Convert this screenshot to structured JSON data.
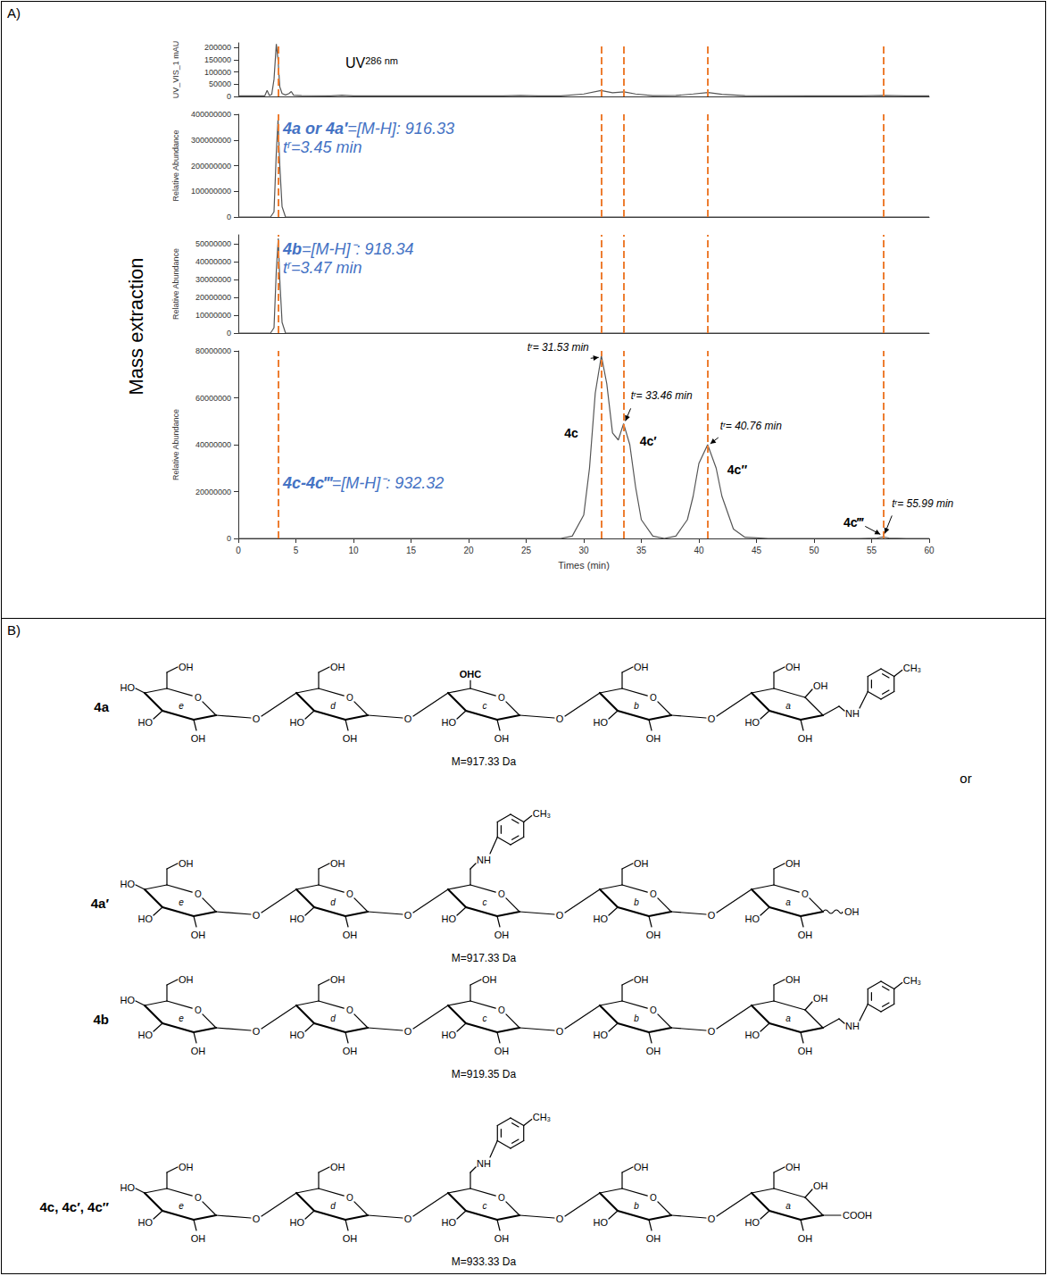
{
  "figure": {
    "panel_labels": [
      "A)",
      "B)"
    ],
    "group_label": "Mass extraction",
    "dashed_lines": {
      "x": [
        3.45,
        31.53,
        33.46,
        40.76,
        55.99
      ],
      "color": "#ed7d31"
    }
  },
  "chart_data": [
    {
      "type": "line",
      "y_label": "UV_VIS_1 mAU",
      "annotation": {
        "text": "UV",
        "subscript": "286 nm"
      },
      "x": [
        0,
        2.3,
        2.5,
        2.7,
        2.9,
        3.1,
        3.3,
        3.45,
        3.6,
        3.8,
        4.1,
        4.4,
        4.6,
        4.8,
        5.5,
        8,
        9,
        10,
        15,
        20,
        23,
        24.5,
        26,
        28,
        30,
        31.5,
        32.5,
        33.5,
        34.5,
        36,
        38,
        39.5,
        40.8,
        42,
        44,
        50,
        54,
        56,
        58,
        60
      ],
      "series": [
        {
          "color": "#555555",
          "values": [
            2000,
            2500,
            25000,
            4000,
            8000,
            70000,
            215000,
            150000,
            40000,
            12000,
            6000,
            12000,
            20000,
            5000,
            3000,
            2500,
            5000,
            2500,
            2000,
            2000,
            2500,
            4000,
            2500,
            2500,
            10000,
            24000,
            15000,
            19000,
            10000,
            3000,
            4000,
            10000,
            16000,
            9000,
            3000,
            2000,
            2500,
            4000,
            2500,
            2000
          ]
        }
      ],
      "xlim": [
        0,
        60
      ],
      "ylim": [
        0,
        220000
      ],
      "yticks": [
        0,
        50000,
        100000,
        150000,
        200000
      ],
      "tick_labels": "y",
      "grid": false
    },
    {
      "type": "line",
      "y_label": "Relative Abundance",
      "annotation": {
        "compounds": "4a or 4a′",
        "ion": "=[M-H]: 916.33",
        "rt": {
          "main": "t",
          "sub": "r",
          "rest": "=3.45 min"
        }
      },
      "x": [
        0,
        2.8,
        3.1,
        3.3,
        3.45,
        3.6,
        3.8,
        4.1,
        5,
        60
      ],
      "series": [
        {
          "color": "#555555",
          "values": [
            0,
            0,
            20000000,
            250000000,
            380000000,
            200000000,
            40000000,
            0,
            0,
            0
          ]
        }
      ],
      "xlim": [
        0,
        60
      ],
      "ylim": [
        0,
        400000000
      ],
      "yticks": [
        0,
        100000000,
        200000000,
        300000000,
        400000000
      ],
      "tick_labels": "y",
      "grid": false
    },
    {
      "type": "line",
      "y_label": "Relative Abundance",
      "annotation": {
        "compounds": "4b",
        "ion": "=[M-H]⁻: 918.34",
        "rt": {
          "main": "t",
          "sub": "r",
          "rest": "=3.47 min"
        }
      },
      "x": [
        0,
        2.8,
        3.1,
        3.3,
        3.47,
        3.6,
        3.8,
        4.1,
        5,
        60
      ],
      "series": [
        {
          "color": "#555555",
          "values": [
            0,
            0,
            3000000,
            35000000,
            53000000,
            30000000,
            6000000,
            0,
            0,
            0
          ]
        }
      ],
      "xlim": [
        0,
        60
      ],
      "ylim": [
        0,
        55000000
      ],
      "yticks": [
        0,
        10000000,
        20000000,
        30000000,
        40000000,
        50000000
      ],
      "tick_labels": "y",
      "grid": false
    },
    {
      "type": "line",
      "y_label": "Relative Abundance",
      "x_label": "Times (min)",
      "annotation": {
        "compounds": "4c-4c‴",
        "ion": "=[M-H]⁻: 932.32"
      },
      "peak_labels": [
        {
          "compound": "4c",
          "rt": {
            "main": "t",
            "sub": "r",
            "rest": "= 31.53 min"
          },
          "x": 31.53
        },
        {
          "compound": "4c′",
          "rt": {
            "main": "t",
            "sub": "r",
            "rest": "= 33.46 min"
          },
          "x": 33.46
        },
        {
          "compound": "4c″",
          "rt": {
            "main": "t",
            "sub": "r",
            "rest": "= 40.76 min"
          },
          "x": 40.76
        },
        {
          "compound": "4c‴",
          "rt": {
            "main": "t",
            "sub": "r",
            "rest": "= 55.99 min"
          },
          "x": 55.99
        }
      ],
      "x": [
        0,
        25,
        28,
        29,
        30,
        30.5,
        31,
        31.53,
        32,
        32.5,
        33,
        33.46,
        34,
        34.5,
        35,
        36,
        37,
        38,
        39,
        39.5,
        40,
        40.76,
        41.5,
        42,
        43,
        44,
        46,
        50,
        54,
        55.5,
        55.99,
        56.5,
        58,
        60
      ],
      "series": [
        {
          "color": "#555555",
          "values": [
            0,
            0,
            0,
            1000000,
            10000000,
            30000000,
            62000000,
            78000000,
            66000000,
            45000000,
            42000000,
            49000000,
            40000000,
            22000000,
            8000000,
            1000000,
            0,
            1000000,
            8000000,
            18000000,
            32000000,
            40000000,
            30000000,
            18000000,
            4000000,
            500000,
            0,
            0,
            0,
            200000,
            600000,
            200000,
            0,
            0
          ]
        }
      ],
      "xlim": [
        0,
        60
      ],
      "xticks": [
        0,
        5,
        10,
        15,
        20,
        25,
        30,
        35,
        40,
        45,
        50,
        55,
        60
      ],
      "ylim": [
        0,
        80000000
      ],
      "yticks": [
        0,
        20000000,
        40000000,
        60000000,
        80000000
      ],
      "grid": false
    }
  ],
  "structures": {
    "separator": "or",
    "items": [
      {
        "label": "4a",
        "mass": "M=917.33 Da",
        "linkage": "O",
        "rings": [
          {
            "letter": "e",
            "ring_o": "O",
            "c6_oh": "OH",
            "c4_oh": "HO",
            "c3_oh": "HO",
            "c2_oh": "OH"
          },
          {
            "letter": "d",
            "ring_o": "O",
            "c6_oh": "OH",
            "c3_oh": "HO",
            "c2_oh": "OH"
          },
          {
            "letter": "c",
            "ring_o": "O",
            "c6_group": "OHC",
            "c3_oh": "HO",
            "c2_oh": "OH"
          },
          {
            "letter": "b",
            "ring_o": "O",
            "c6_oh": "OH",
            "c3_oh": "HO",
            "c2_oh": "OH"
          },
          {
            "letter": "a",
            "c6_oh": "OH",
            "o5_oh": "OH",
            "c3_oh": "HO",
            "c2_oh": "OH",
            "c1_amine": "NH",
            "aryl_methyl": "CH₃"
          }
        ]
      },
      {
        "label": "4a′",
        "mass": "M=917.33 Da",
        "linkage": "O",
        "rings": [
          {
            "letter": "e",
            "ring_o": "O",
            "c6_oh": "OH",
            "c4_oh": "HO",
            "c3_oh": "HO",
            "c2_oh": "OH"
          },
          {
            "letter": "d",
            "ring_o": "O",
            "c6_oh": "OH",
            "c3_oh": "HO",
            "c2_oh": "OH"
          },
          {
            "letter": "c",
            "ring_o": "O",
            "c6_amine": "NH",
            "aryl_methyl": "CH₃",
            "c3_oh": "HO",
            "c2_oh": "OH"
          },
          {
            "letter": "b",
            "ring_o": "O",
            "c6_oh": "OH",
            "c3_oh": "HO",
            "c2_oh": "OH"
          },
          {
            "letter": "a",
            "ring_o": "O",
            "c6_oh": "OH",
            "c3_oh": "HO",
            "c2_oh": "OH",
            "c1_oh": "OH"
          }
        ]
      },
      {
        "label": "4b",
        "mass": "M=919.35 Da",
        "linkage": "O",
        "rings": [
          {
            "letter": "e",
            "ring_o": "O",
            "c6_oh": "OH",
            "c4_oh": "HO",
            "c3_oh": "HO",
            "c2_oh": "OH"
          },
          {
            "letter": "d",
            "ring_o": "O",
            "c6_oh": "OH",
            "c3_oh": "HO",
            "c2_oh": "OH"
          },
          {
            "letter": "c",
            "ring_o": "O",
            "c6_oh": "OH",
            "c3_oh": "HO",
            "c2_oh": "OH"
          },
          {
            "letter": "b",
            "ring_o": "O",
            "c6_oh": "OH",
            "c3_oh": "HO",
            "c2_oh": "OH"
          },
          {
            "letter": "a",
            "c6_oh": "OH",
            "o5_oh": "OH",
            "c3_oh": "HO",
            "c2_oh": "OH",
            "c1_amine": "NH",
            "aryl_methyl": "CH₃"
          }
        ]
      },
      {
        "label": "4c, 4c′, 4c″",
        "mass": "M=933.33 Da",
        "linkage": "O",
        "rings": [
          {
            "letter": "e",
            "ring_o": "O",
            "c6_oh": "OH",
            "c4_oh": "HO",
            "c3_oh": "HO",
            "c2_oh": "OH"
          },
          {
            "letter": "d",
            "ring_o": "O",
            "c6_oh": "OH",
            "c3_oh": "HO",
            "c2_oh": "OH"
          },
          {
            "letter": "c",
            "ring_o": "O",
            "c6_amine": "NH",
            "aryl_methyl": "CH₃",
            "c3_oh": "HO",
            "c2_oh": "OH"
          },
          {
            "letter": "b",
            "ring_o": "O",
            "c6_oh": "OH",
            "c3_oh": "HO",
            "c2_oh": "OH"
          },
          {
            "letter": "a",
            "c6_oh": "OH",
            "o5_oh": "OH",
            "c3_oh": "HO",
            "c2_oh": "OH",
            "c1_acid": "COOH"
          }
        ]
      }
    ]
  }
}
